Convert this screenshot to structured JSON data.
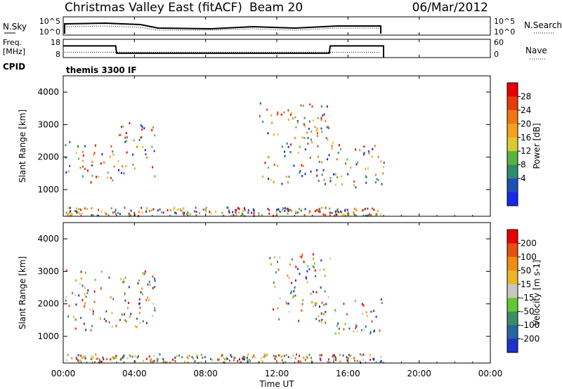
{
  "header": {
    "title": "Christmas Valley East (fitACF)",
    "beam": "Beam 20",
    "date": "06/Mar/2012"
  },
  "nsky_panel": {
    "left_label": "N.Sky",
    "left_ticks": [
      "10^5",
      "10^0"
    ],
    "right_label": "N.Search",
    "right_ticks": [
      "10^5",
      "10^0"
    ]
  },
  "freq_panel": {
    "left_label_line1": "Freq.",
    "left_label_line2": "[MHz]",
    "left_ticks": [
      18,
      8
    ],
    "right_label": "Nave",
    "right_ticks": [
      60,
      0
    ],
    "freq_series": [
      {
        "t": 0.0,
        "v": 15
      },
      {
        "t": 2.95,
        "v": 15
      },
      {
        "t": 3.0,
        "v": 9.2
      },
      {
        "t": 14.95,
        "v": 9.2
      },
      {
        "t": 15.0,
        "v": 15
      },
      {
        "t": 18.0,
        "v": 15
      }
    ],
    "nave_level": 12
  },
  "cpid": {
    "label": "CPID",
    "value": "themis 3300 IF"
  },
  "power_panel": {
    "ylabel": "Slant Range [km]",
    "yticks": [
      1000,
      2000,
      3000,
      4000
    ],
    "colorbar_label": "Power [dB]",
    "colorbar_ticks": [
      "28",
      "24",
      "20",
      "16",
      "12",
      "8",
      "4"
    ],
    "colors": [
      "#1428e6",
      "#1e50b4",
      "#2d8c6e",
      "#5ab43c",
      "#dcc832",
      "#f5a01e",
      "#f07814",
      "#e63c0a",
      "#e60000"
    ]
  },
  "velocity_panel": {
    "ylabel": "Slant Range [km]",
    "yticks": [
      1000,
      2000,
      3000,
      4000
    ],
    "colorbar_label": "Velocity [m s-1]",
    "colorbar_ticks": [
      "200",
      "100",
      "50",
      "15",
      "-15",
      "-50",
      "-100",
      "-200"
    ],
    "colors": [
      "#1e32c8",
      "#2864a0",
      "#3c8c64",
      "#64c832",
      "#c8c8c0",
      "#f0b428",
      "#f08c14",
      "#e65014",
      "#e60000"
    ]
  },
  "chart_data": {
    "type": "heatmap",
    "x_axis": {
      "label": "Time UT",
      "ticks": [
        "00:00",
        "04:00",
        "08:00",
        "12:00",
        "16:00",
        "20:00",
        "00:00"
      ],
      "range_hours": [
        0,
        24
      ]
    },
    "y_range_km": [
      180,
      4500
    ],
    "data_end_hour": 18,
    "power_bands": [
      {
        "t_start": 0.1,
        "t_end": 3.0,
        "r_start": 1250,
        "r_end": 2500,
        "level": "20-28"
      },
      {
        "t_start": 3.0,
        "t_end": 5.2,
        "r_start": 1400,
        "r_end": 3100,
        "level": "4-24"
      },
      {
        "t_start": 11.0,
        "t_end": 15.0,
        "r_start": 1200,
        "r_end": 3700,
        "level": "4-28"
      },
      {
        "t_start": 15.0,
        "t_end": 18.0,
        "r_start": 1100,
        "r_end": 2500,
        "level": "8-28"
      }
    ],
    "velocity_bands": [
      {
        "t_start": 0.1,
        "t_end": 5.2,
        "r_start": 1200,
        "r_end": 3100,
        "level": "-15 to 15"
      },
      {
        "t_start": 11.5,
        "t_end": 15.0,
        "r_start": 1400,
        "r_end": 3600,
        "level": "15 to 50"
      },
      {
        "t_start": 15.0,
        "t_end": 18.0,
        "r_start": 1100,
        "r_end": 2200,
        "level": "-15 to 15"
      }
    ]
  }
}
